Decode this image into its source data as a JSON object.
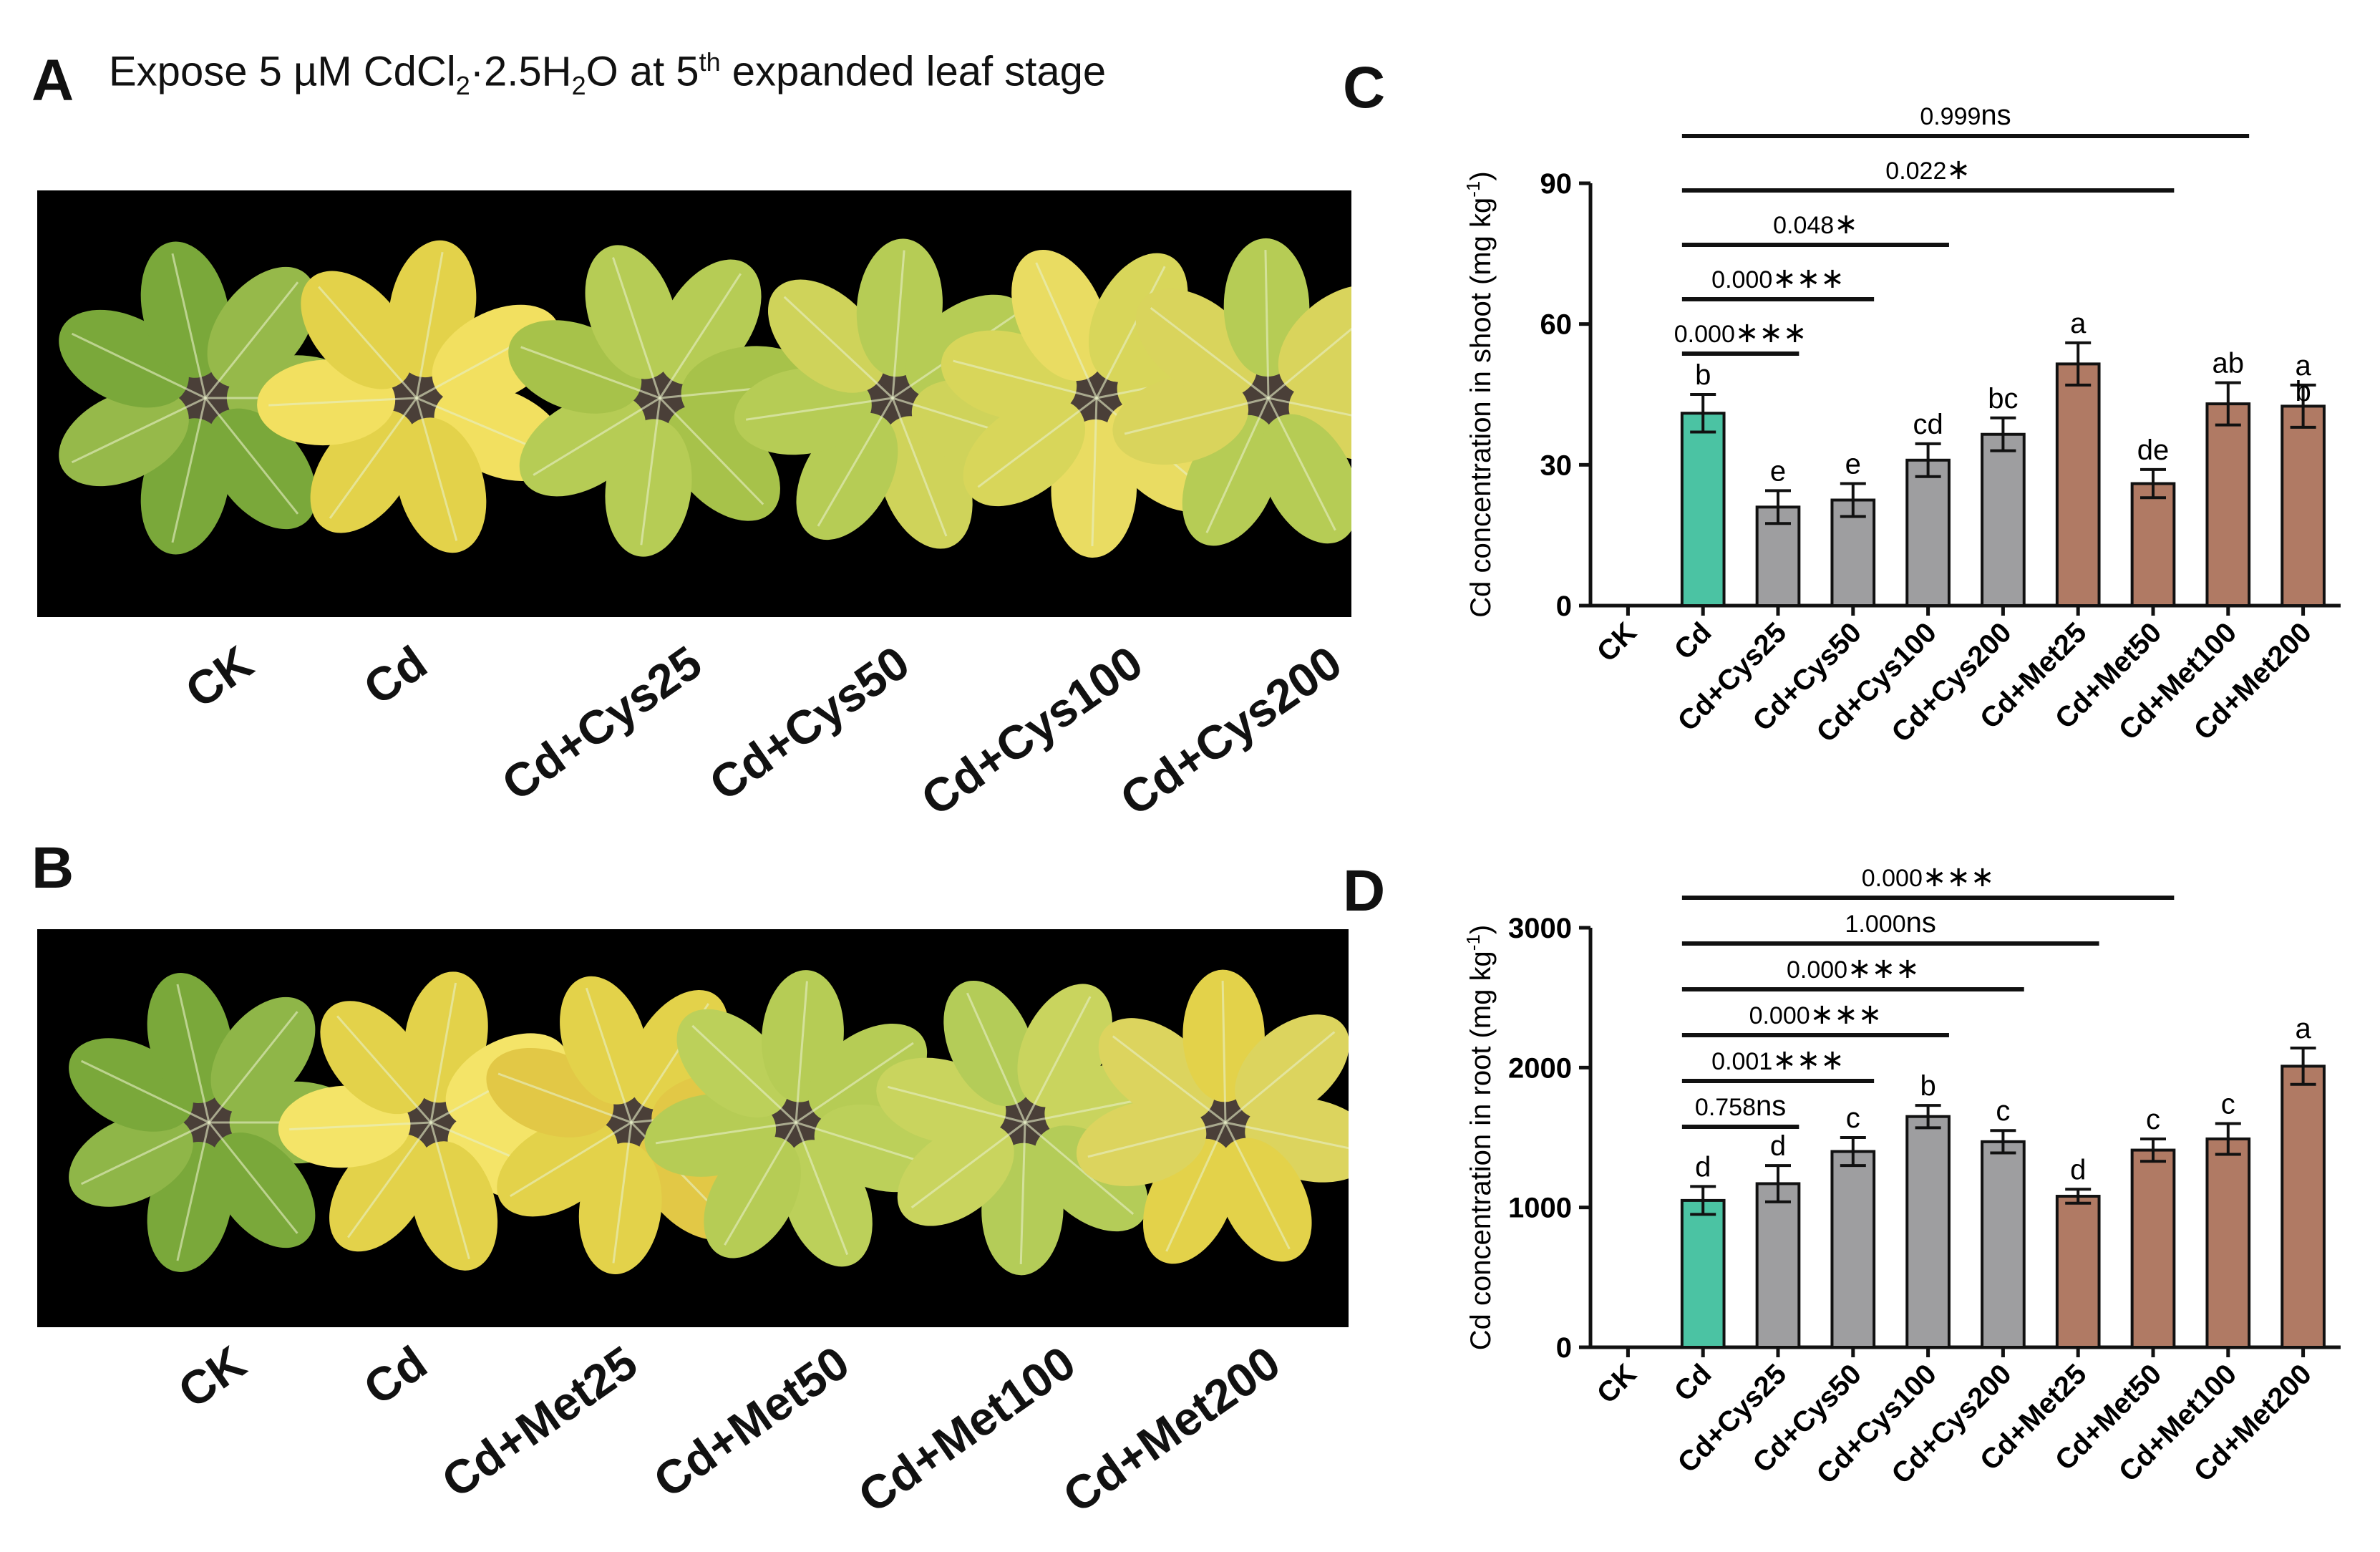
{
  "figure": {
    "panel_a": {
      "letter": "A",
      "title_prefix": "Expose 5 µM CdCl",
      "title_sub1": "2",
      "title_mid": "·2.5H",
      "title_sub2": "2",
      "title_mid2": "O at 5",
      "title_sup": "th",
      "title_suffix": " expanded leaf stage",
      "labels": [
        "CK",
        "Cd",
        "Cd+Cys25",
        "Cd+Cys50",
        "Cd+Cys100",
        "Cd+Cys200"
      ]
    },
    "panel_b": {
      "letter": "B",
      "labels": [
        "CK",
        "Cd",
        "Cd+Met25",
        "Cd+Met50",
        "Cd+Met100",
        "Cd+Met200"
      ]
    },
    "colors": {
      "cd": "#4bc3a3",
      "cys": "#9e9ea0",
      "met": "#b07a64",
      "leaf_green": "#7aa83a",
      "leaf_yellow": "#e3d24a",
      "leaf_lightgreen": "#b6cc55"
    }
  },
  "chart_data": [
    {
      "panel": "C",
      "type": "bar",
      "categories": [
        "CK",
        "Cd",
        "Cd+Cys25",
        "Cd+Cys50",
        "Cd+Cys100",
        "Cd+Cys200",
        "Cd+Met25",
        "Cd+Met50",
        "Cd+Met100",
        "Cd+Met200"
      ],
      "values": [
        0,
        41,
        21,
        22.5,
        31,
        36.5,
        51.5,
        26,
        43,
        42.5
      ],
      "errors": [
        0,
        4,
        3.5,
        3.5,
        3.5,
        3.5,
        4.5,
        3,
        4.5,
        4.5
      ],
      "letters": [
        "",
        "b",
        "e",
        "e",
        "cd",
        "bc",
        "a",
        "de",
        "ab",
        "a\nb"
      ],
      "groups": [
        "none",
        "cd",
        "cys",
        "cys",
        "cys",
        "cys",
        "met",
        "met",
        "met",
        "met"
      ],
      "ylabel": "Cd concentration in shoot (mg kg",
      "ylabel_sup": "-1",
      "ylabel_end": ")",
      "ylim": [
        0,
        90
      ],
      "yticks": [
        0,
        30,
        60,
        90
      ],
      "comparisons": [
        {
          "from": 1,
          "to": 2,
          "p": "0.000",
          "sig": "∗∗∗"
        },
        {
          "from": 1,
          "to": 3,
          "p": "0.000",
          "sig": "∗∗∗"
        },
        {
          "from": 1,
          "to": 4,
          "p": "0.048",
          "sig": "∗"
        },
        {
          "from": 1,
          "to": 7,
          "p": "0.022",
          "sig": "∗"
        },
        {
          "from": 1,
          "to": 8,
          "p": "0.999",
          "sig": "ns"
        }
      ]
    },
    {
      "panel": "D",
      "type": "bar",
      "categories": [
        "CK",
        "Cd",
        "Cd+Cys25",
        "Cd+Cys50",
        "Cd+Cys100",
        "Cd+Cys200",
        "Cd+Met25",
        "Cd+Met50",
        "Cd+Met100",
        "Cd+Met200"
      ],
      "values": [
        0,
        1050,
        1170,
        1400,
        1650,
        1470,
        1080,
        1410,
        1490,
        2010
      ],
      "errors": [
        0,
        100,
        130,
        100,
        80,
        80,
        50,
        80,
        110,
        130
      ],
      "letters": [
        "",
        "d",
        "d",
        "c",
        "b",
        "c",
        "d",
        "c",
        "c",
        "a"
      ],
      "groups": [
        "none",
        "cd",
        "cys",
        "cys",
        "cys",
        "cys",
        "met",
        "met",
        "met",
        "met"
      ],
      "ylabel": "Cd concentration in root (mg kg",
      "ylabel_sup": "-1",
      "ylabel_end": ")",
      "ylim": [
        0,
        3000
      ],
      "yticks": [
        0,
        1000,
        2000,
        3000
      ],
      "comparisons": [
        {
          "from": 1,
          "to": 2,
          "p": "0.758",
          "sig": "ns"
        },
        {
          "from": 1,
          "to": 3,
          "p": "0.001",
          "sig": "∗∗∗"
        },
        {
          "from": 1,
          "to": 4,
          "p": "0.000",
          "sig": "∗∗∗"
        },
        {
          "from": 1,
          "to": 5,
          "p": "0.000",
          "sig": "∗∗∗"
        },
        {
          "from": 1,
          "to": 6,
          "p": "1.000",
          "sig": "ns"
        },
        {
          "from": 1,
          "to": 7,
          "p": "0.000",
          "sig": "∗∗∗"
        }
      ]
    }
  ]
}
